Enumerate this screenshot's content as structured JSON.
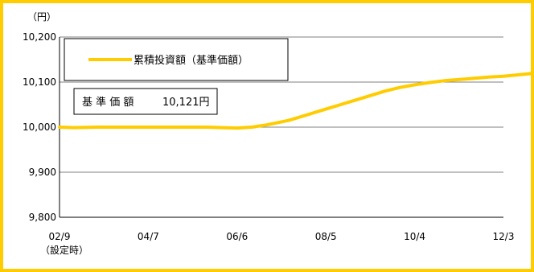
{
  "chart_data": {
    "type": "line",
    "title": "",
    "ylabel": "",
    "y_unit_label": "（円）",
    "ylim": [
      9800,
      10200
    ],
    "y_ticks": [
      9800,
      9900,
      10000,
      10100,
      10200
    ],
    "y_tick_labels": [
      "9,800",
      "9,900",
      "10,000",
      "10,100",
      "10,200"
    ],
    "x_ticks": [
      {
        "label": "02/9",
        "sub": "（設定時）"
      },
      {
        "label": "04/7",
        "sub": ""
      },
      {
        "label": "06/6",
        "sub": ""
      },
      {
        "label": "08/5",
        "sub": ""
      },
      {
        "label": "10/4",
        "sub": ""
      },
      {
        "label": "12/3",
        "sub": ""
      }
    ],
    "grid": true,
    "legend": {
      "position": "top-left"
    },
    "series": [
      {
        "name": "累積投資額（基準価額）",
        "color": "#ffcc00",
        "x": [
          0,
          2,
          5,
          7,
          10,
          12,
          15,
          18,
          20,
          22,
          24,
          26,
          28,
          31,
          33,
          36,
          38,
          40,
          42,
          44,
          46,
          48,
          50,
          52,
          55,
          58,
          60,
          62,
          65
        ],
        "y": [
          10000,
          9999,
          10000,
          10000,
          10000,
          10000,
          10000,
          10000,
          10000,
          9999,
          9998,
          10000,
          10005,
          10015,
          10025,
          10040,
          10050,
          10060,
          10070,
          10080,
          10088,
          10094,
          10099,
          10103,
          10107,
          10111,
          10113,
          10116,
          10121
        ]
      }
    ]
  },
  "info_box": {
    "label": "基 準 価 額",
    "value": "10,121円"
  }
}
